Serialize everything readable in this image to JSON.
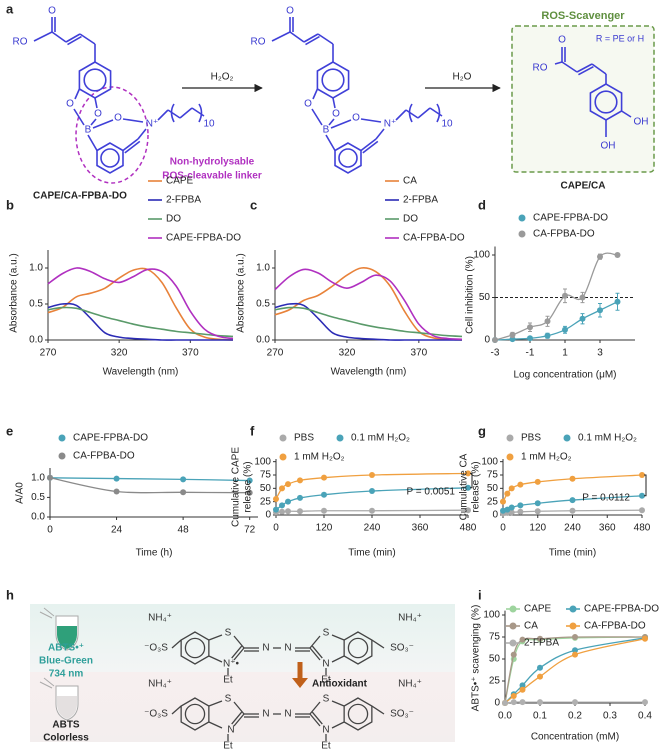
{
  "scheme_a": {
    "panel": "a",
    "reagent1": "H₂O₂",
    "reagent2": "H₂O",
    "box_title": "ROS-Scavenger",
    "r_group": "R = PE or H",
    "linker_line1": "Non-hydrolysable",
    "linker_line2": "ROS-cleavable linker",
    "label1": "CAPE/CA-FPBA-DO",
    "label3": "CAPE/CA",
    "molecules": [
      {
        "atoms": [
          "RO",
          "O",
          "O",
          "O",
          "B",
          "O",
          "N⁺",
          "10"
        ]
      },
      {
        "atoms": [
          "RO",
          "O",
          "O",
          "O",
          "B",
          "O",
          "N⁺",
          "10"
        ]
      },
      {
        "atoms": [
          "RO",
          "O",
          "OH",
          "OH"
        ]
      }
    ]
  },
  "scheme_h": {
    "panel": "h",
    "top_label": [
      "ABTS•⁺",
      "Blue-Green",
      "734 nm"
    ],
    "bottom_label": [
      "ABTS",
      "Colorless"
    ],
    "arrow_label": "Antioxidant",
    "atoms_top": [
      "NH₄⁺",
      "NH₄⁺",
      "⁻O₃S",
      "SO₃⁻",
      "S",
      "S",
      "N⁺•",
      "N",
      "N",
      "N",
      "Et",
      "Et"
    ],
    "atoms_bottom": [
      "NH₄⁺",
      "NH₄⁺",
      "⁻O₃S",
      "SO₃⁻",
      "S",
      "S",
      "N",
      "N",
      "N",
      "N",
      "Et",
      "Et"
    ]
  },
  "chart_data": [
    {
      "panel": "b",
      "type": "line",
      "markers": false,
      "xlabel": "Wavelength (nm)",
      "ylabel": [
        "Absorbance (a.u.)"
      ],
      "x": [
        270,
        280,
        290,
        300,
        310,
        320,
        330,
        340,
        350,
        360,
        370,
        380,
        390,
        400
      ],
      "series": [
        {
          "name": "CAPE",
          "color": "#e8823a",
          "values": [
            0.38,
            0.45,
            0.6,
            0.65,
            0.72,
            0.86,
            0.97,
            0.98,
            0.8,
            0.45,
            0.15,
            0.04,
            0.01,
            0
          ]
        },
        {
          "name": "2-FPBA",
          "color": "#2b2bb5",
          "values": [
            0.45,
            0.5,
            0.48,
            0.3,
            0.1,
            0.04,
            0.02,
            0.01,
            0,
            0,
            0,
            0,
            0,
            0
          ]
        },
        {
          "name": "DO",
          "color": "#5a9a6a",
          "values": [
            0.42,
            0.45,
            0.44,
            0.38,
            0.32,
            0.27,
            0.22,
            0.18,
            0.15,
            0.12,
            0.1,
            0.08,
            0.06,
            0.05
          ]
        },
        {
          "name": "CAPE-FPBA-DO",
          "color": "#b030c0",
          "values": [
            0.78,
            0.92,
            1.0,
            0.95,
            0.85,
            0.8,
            0.88,
            0.98,
            0.95,
            0.75,
            0.4,
            0.15,
            0.05,
            0.02
          ]
        }
      ],
      "xlim": [
        270,
        400
      ],
      "xticks": [
        270,
        320,
        370
      ],
      "ylim": [
        0,
        1.25
      ],
      "yticks": [
        {
          "value": 0,
          "label": "0.0"
        },
        {
          "value": 0.5,
          "label": "0.5"
        },
        {
          "value": 1,
          "label": "1.0"
        }
      ]
    },
    {
      "panel": "c",
      "type": "line",
      "markers": false,
      "xlabel": "Wavelength (nm)",
      "ylabel": [
        "Absorbance (a.u.)"
      ],
      "x": [
        270,
        280,
        290,
        300,
        310,
        320,
        330,
        340,
        350,
        360,
        370,
        380,
        390,
        400
      ],
      "series": [
        {
          "name": "CA",
          "color": "#e8823a",
          "values": [
            0.35,
            0.42,
            0.55,
            0.62,
            0.75,
            0.9,
            1.0,
            0.95,
            0.75,
            0.4,
            0.12,
            0.03,
            0.01,
            0
          ]
        },
        {
          "name": "2-FPBA",
          "color": "#2b2bb5",
          "values": [
            0.45,
            0.5,
            0.48,
            0.3,
            0.1,
            0.04,
            0.02,
            0.01,
            0,
            0,
            0,
            0,
            0,
            0
          ]
        },
        {
          "name": "DO",
          "color": "#5a9a6a",
          "values": [
            0.42,
            0.45,
            0.44,
            0.38,
            0.32,
            0.27,
            0.22,
            0.18,
            0.15,
            0.12,
            0.1,
            0.08,
            0.06,
            0.05
          ]
        },
        {
          "name": "CA-FPBA-DO",
          "color": "#b030c0",
          "values": [
            0.7,
            0.88,
            0.98,
            0.93,
            0.8,
            0.72,
            0.8,
            0.9,
            0.82,
            0.55,
            0.22,
            0.06,
            0.02,
            0.01
          ]
        }
      ],
      "xlim": [
        270,
        400
      ],
      "xticks": [
        270,
        320,
        370
      ],
      "ylim": [
        0,
        1.25
      ],
      "yticks": [
        {
          "value": 0,
          "label": "0.0"
        },
        {
          "value": 0.5,
          "label": "0.5"
        },
        {
          "value": 1,
          "label": "1.0"
        }
      ]
    },
    {
      "panel": "d",
      "type": "scatter",
      "markers": true,
      "xlabel": "Log concentration (μM)",
      "ylabel": [
        "Cell inhibition (%)"
      ],
      "x": [
        -3,
        -2,
        -1,
        0,
        1,
        2,
        3,
        4
      ],
      "series": [
        {
          "name": "CAPE-FPBA-DO",
          "color": "#4aa3b8",
          "values": [
            0,
            1,
            2,
            5,
            12,
            25,
            35,
            45
          ],
          "errors": [
            1,
            1,
            2,
            3,
            4,
            6,
            8,
            10
          ]
        },
        {
          "name": "CA-FPBA-DO",
          "color": "#9a9a9a",
          "values": [
            0,
            6,
            15,
            22,
            52,
            50,
            98,
            100
          ],
          "errors": [
            1,
            3,
            5,
            6,
            8,
            6,
            3,
            2
          ]
        }
      ],
      "hline": 50,
      "xlim": [
        -3,
        5
      ],
      "xticks": [
        -3,
        -1,
        1,
        3
      ],
      "ylim": [
        0,
        110
      ],
      "yticks": [
        0,
        50,
        100
      ]
    },
    {
      "panel": "e",
      "type": "line",
      "markers": true,
      "xlabel": "Time (h)",
      "ylabel": [
        "A/A0"
      ],
      "x": [
        0,
        24,
        48,
        72
      ],
      "series": [
        {
          "name": "CAPE-FPBA-DO",
          "color": "#4aa3b8",
          "values": [
            1.0,
            0.98,
            0.96,
            0.93
          ]
        },
        {
          "name": "CA-FPBA-DO",
          "color": "#8a8a8a",
          "values": [
            1.0,
            0.65,
            0.63,
            0.62
          ]
        }
      ],
      "xlim": [
        0,
        75
      ],
      "xticks": [
        0,
        24,
        48,
        72
      ],
      "ylim": [
        0,
        1.25
      ],
      "yticks": [
        {
          "value": 0,
          "label": "0.0"
        },
        {
          "value": 0.5,
          "label": "0.5"
        },
        {
          "value": 1,
          "label": "1.0"
        }
      ]
    },
    {
      "panel": "f",
      "type": "line",
      "markers": true,
      "xlabel": "Time (min)",
      "ylabel": [
        "Cumulative CAPE",
        "release (%)"
      ],
      "x": [
        0,
        15,
        30,
        60,
        120,
        240,
        480
      ],
      "series": [
        {
          "name": "PBS",
          "color": "#aaaaaa",
          "values": [
            5,
            6,
            7,
            7,
            8,
            8,
            9
          ]
        },
        {
          "name": "0.1 mM H₂O₂",
          "color": "#4aa3b8",
          "values": [
            10,
            18,
            25,
            32,
            38,
            45,
            51
          ]
        },
        {
          "name": "1 mM H₂O₂",
          "color": "#f0a040",
          "values": [
            30,
            50,
            58,
            65,
            70,
            75,
            78
          ]
        }
      ],
      "annotation": "P = 0.0051",
      "xlim": [
        0,
        480
      ],
      "xticks": [
        0,
        120,
        240,
        360,
        480
      ],
      "ylim": [
        0,
        105
      ],
      "yticks": [
        0,
        25,
        50,
        75,
        100
      ]
    },
    {
      "panel": "g",
      "type": "line",
      "markers": true,
      "xlabel": "Time (min)",
      "ylabel": [
        "Cumulative CA",
        "release (%)"
      ],
      "x": [
        0,
        15,
        30,
        60,
        120,
        240,
        480
      ],
      "series": [
        {
          "name": "PBS",
          "color": "#aaaaaa",
          "values": [
            3,
            4,
            5,
            6,
            7,
            8,
            9
          ]
        },
        {
          "name": "0.1 mM H₂O₂",
          "color": "#4aa3b8",
          "values": [
            8,
            10,
            14,
            18,
            22,
            28,
            36
          ]
        },
        {
          "name": "1 mM H₂O₂",
          "color": "#f0a040",
          "values": [
            25,
            40,
            50,
            57,
            62,
            68,
            75
          ]
        }
      ],
      "annotation": "P = 0.0112",
      "xlim": [
        0,
        480
      ],
      "xticks": [
        0,
        120,
        240,
        360,
        480
      ],
      "ylim": [
        0,
        105
      ],
      "yticks": [
        0,
        25,
        50,
        75,
        100
      ]
    },
    {
      "panel": "i",
      "type": "line",
      "markers": true,
      "xlabel": "Concentration (mM)",
      "ylabel": [
        "ABTS•⁺ scavenging (%)"
      ],
      "x": [
        0,
        0.025,
        0.05,
        0.1,
        0.2,
        0.4
      ],
      "series": [
        {
          "name": "CAPE",
          "color": "#9ed49e",
          "values": [
            0,
            50,
            70,
            72,
            74,
            75
          ]
        },
        {
          "name": "CAPE-FPBA-DO",
          "color": "#4aa3b8",
          "values": [
            0,
            10,
            20,
            40,
            60,
            74
          ]
        },
        {
          "name": "CA",
          "color": "#a89888",
          "values": [
            0,
            55,
            72,
            73,
            75,
            75
          ]
        },
        {
          "name": "CA-FPBA-DO",
          "color": "#f0a040",
          "values": [
            0,
            8,
            15,
            30,
            55,
            73
          ]
        },
        {
          "name": "2-FPBA",
          "color": "#b0b0b0",
          "values": [
            0,
            1,
            1,
            1,
            1,
            1
          ]
        }
      ],
      "xlim": [
        0,
        0.4
      ],
      "xticks": [
        {
          "value": 0,
          "label": "0.0"
        },
        {
          "value": 0.1,
          "label": "0.1"
        },
        {
          "value": 0.2,
          "label": "0.2"
        },
        {
          "value": 0.3,
          "label": "0.3"
        },
        {
          "value": 0.4,
          "label": "0.4"
        }
      ],
      "ylim": [
        0,
        105
      ],
      "yticks": [
        0,
        25,
        50,
        75,
        100
      ]
    }
  ]
}
